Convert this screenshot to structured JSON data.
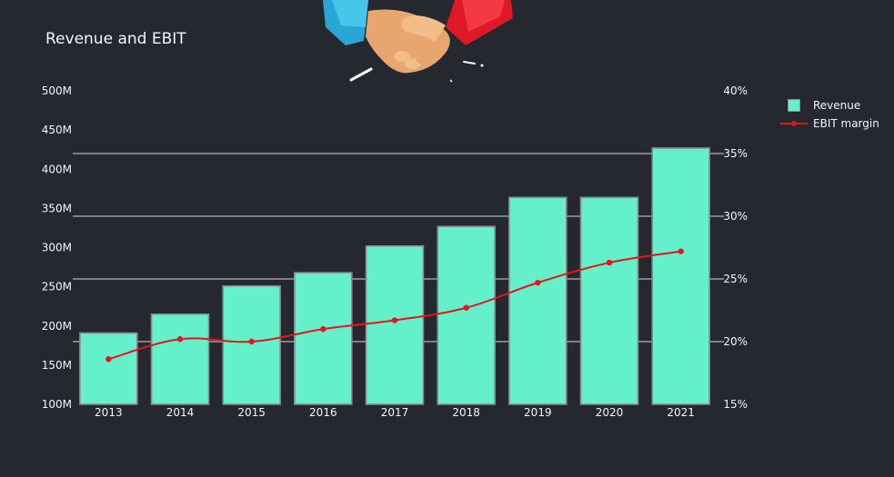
{
  "title": "Revenue and EBIT",
  "colors": {
    "background": "#25282e",
    "bar": "#64f0ca",
    "bar_border": "#8a8a8a",
    "line": "#e8131b",
    "grid": "#b0b3b8",
    "text": "#f2f5fa"
  },
  "legend": {
    "revenue": "Revenue",
    "ebit": "EBIT margin",
    "placement": "top-right"
  },
  "decoration": {
    "icon": "handshake-icon"
  },
  "chart_data": {
    "type": "bar+line",
    "categories": [
      "2013",
      "2014",
      "2015",
      "2016",
      "2017",
      "2018",
      "2019",
      "2020",
      "2021"
    ],
    "series": [
      {
        "name": "Revenue",
        "type": "bar",
        "axis": "left",
        "values": [
          191,
          215,
          251,
          268,
          302,
          327,
          364,
          364,
          427
        ]
      },
      {
        "name": "EBIT margin",
        "type": "line",
        "axis": "right",
        "values": [
          18.6,
          20.2,
          20.0,
          21.0,
          21.7,
          22.7,
          24.7,
          26.3,
          27.2
        ]
      }
    ],
    "y_left": {
      "range": [
        100,
        500
      ],
      "ticks": [
        "100M",
        "150M",
        "200M",
        "250M",
        "300M",
        "350M",
        "400M",
        "450M",
        "500M"
      ]
    },
    "y_right": {
      "range": [
        15,
        40
      ],
      "ticks": [
        "15%",
        "20%",
        "25%",
        "30%",
        "35%",
        "40%"
      ]
    },
    "grid": "right-axis"
  }
}
